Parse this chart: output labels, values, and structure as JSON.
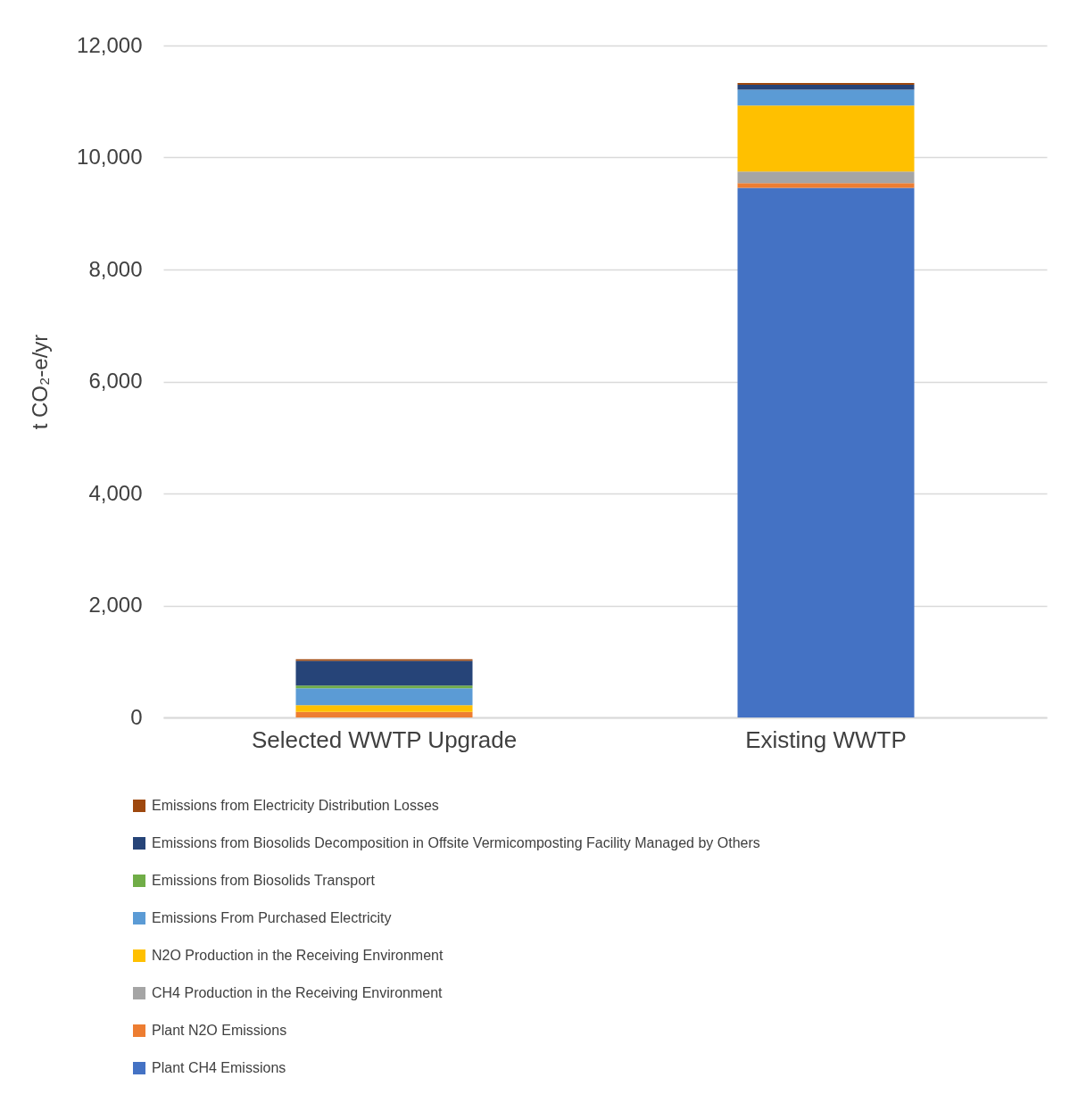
{
  "chart_data": {
    "type": "bar",
    "stacked": true,
    "ylabel": "t CO₂-e/yr",
    "categories": [
      "Selected WWTP Upgrade",
      "Existing WWTP"
    ],
    "series": [
      {
        "name": "Plant CH4 Emissions",
        "color": "#4472c4",
        "values": [
          0,
          9460
        ]
      },
      {
        "name": "Plant N2O Emissions",
        "color": "#ed7d31",
        "values": [
          100,
          80
        ]
      },
      {
        "name": "CH4 Production in the Receiving Environment",
        "color": "#a5a5a5",
        "values": [
          0,
          210
        ]
      },
      {
        "name": "N2O Production in the Receiving Environment",
        "color": "#ffc000",
        "values": [
          120,
          1180
        ]
      },
      {
        "name": "Emissions From Purchased Electricity",
        "color": "#5b9bd5",
        "values": [
          300,
          280
        ]
      },
      {
        "name": "Emissions from Biosolids Transport",
        "color": "#70ad47",
        "values": [
          50,
          0
        ]
      },
      {
        "name": "Emissions from Biosolids Decomposition in Offsite Vermicomposting Facility Managed by Others",
        "color": "#264478",
        "values": [
          440,
          90
        ]
      },
      {
        "name": "Emissions from Electricity Distribution Losses",
        "color": "#9e480e",
        "values": [
          30,
          30
        ]
      }
    ],
    "ylim": [
      0,
      12000
    ],
    "yticks": [
      0,
      {
        "value": 2000,
        "label": "2,000"
      },
      {
        "value": 4000,
        "label": "4,000"
      },
      {
        "value": 6000,
        "label": "6,000"
      },
      {
        "value": 8000,
        "label": "8,000"
      },
      {
        "value": 10000,
        "label": "10,000"
      },
      {
        "value": 12000,
        "label": "12,000"
      }
    ],
    "grid": "y",
    "legend": "bottom"
  }
}
